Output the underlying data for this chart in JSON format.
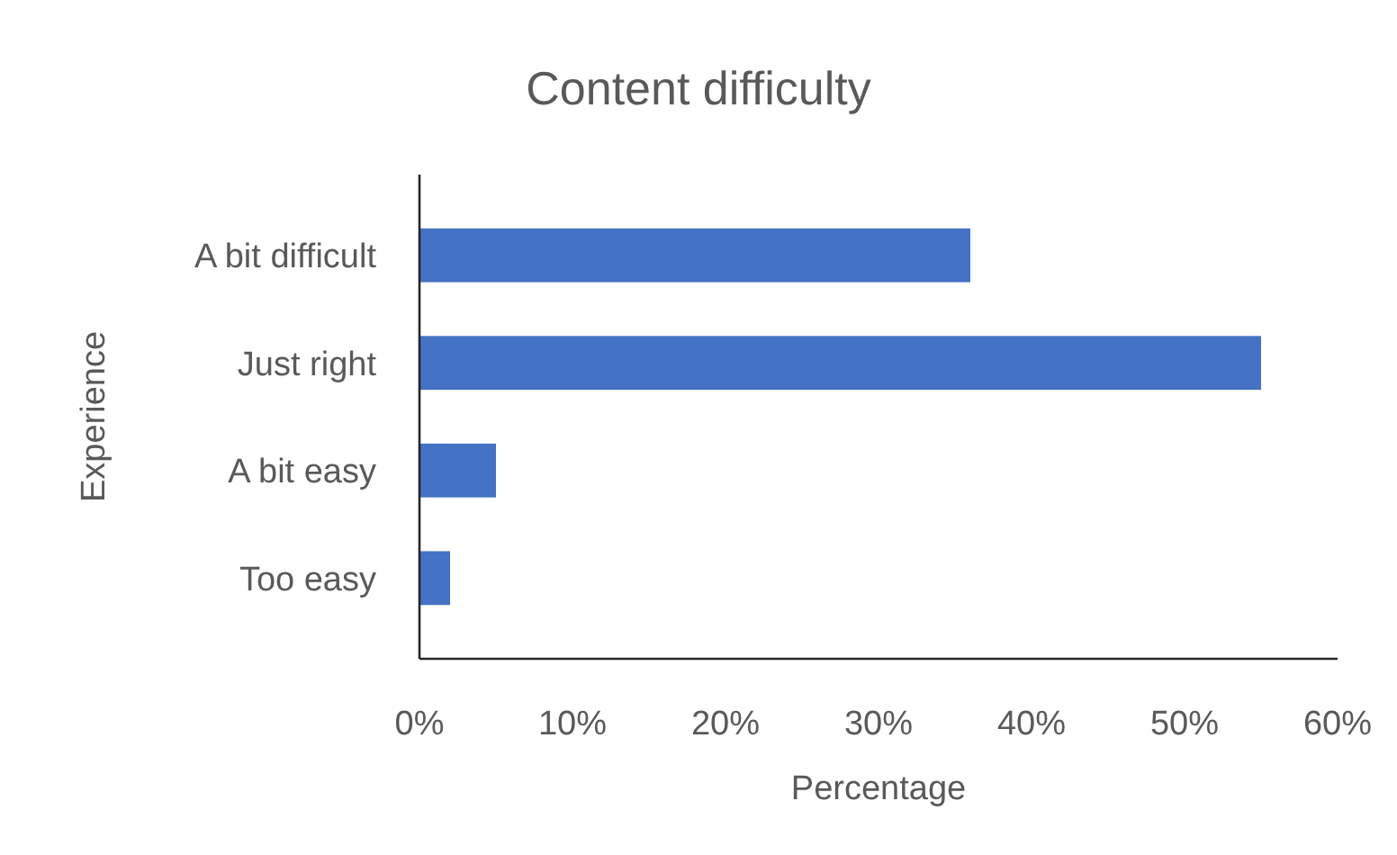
{
  "chart_data": {
    "type": "bar",
    "orientation": "horizontal",
    "title": "Content difficulty",
    "xlabel": "Percentage",
    "ylabel": "Experience",
    "categories": [
      "A bit difficult",
      "Just right",
      "A bit easy",
      "Too easy"
    ],
    "values": [
      36,
      55,
      5,
      2
    ],
    "color": "#4472c4",
    "xlim": [
      0,
      60
    ],
    "xticks": [
      {
        "value": 0,
        "label": "0%"
      },
      {
        "value": 10,
        "label": "10%"
      },
      {
        "value": 20,
        "label": "20%"
      },
      {
        "value": 30,
        "label": "30%"
      },
      {
        "value": 40,
        "label": "40%"
      },
      {
        "value": 50,
        "label": "50%"
      },
      {
        "value": 60,
        "label": "60%"
      }
    ],
    "grid": false
  }
}
